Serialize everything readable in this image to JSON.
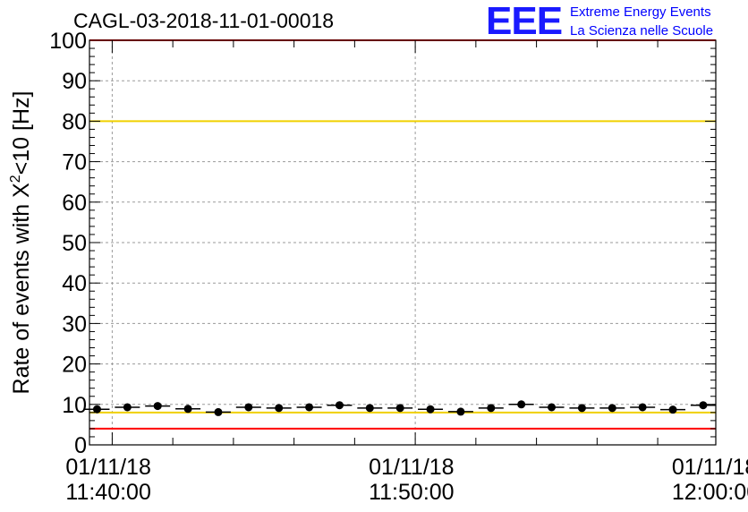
{
  "header": {
    "title": "CAGL-03-2018-11-01-00018",
    "logo_mark": "EEE",
    "logo_line1": "Extreme Energy Events",
    "logo_line2": "La Scienza nelle Scuole"
  },
  "colors": {
    "data": "#000000",
    "red_threshold": "#ff0000",
    "yellow_threshold": "#f0d000",
    "grid": "#9a9a9a",
    "logo": "#0000ff"
  },
  "chart_data": {
    "type": "scatter",
    "title": "CAGL-03-2018-11-01-00018",
    "ylabel_prefix": "Rate of events with X",
    "ylabel_sup": "2",
    "ylabel_suffix": "<10 [Hz]",
    "xlabel": "",
    "ylim": [
      0,
      100
    ],
    "yticks": [
      0,
      10,
      20,
      30,
      40,
      50,
      60,
      70,
      80,
      90,
      100
    ],
    "xlim": [
      "11:39:15",
      "11:59:55"
    ],
    "xticks": [
      {
        "time": "11:40:00",
        "date_label": "01/11/18",
        "time_label": "11:40:00"
      },
      {
        "time": "11:50:00",
        "date_label": "01/11/18",
        "time_label": "11:50:00"
      },
      {
        "time": "12:00:00",
        "date_label": "01/11/18",
        "time_label": "12:00:00"
      }
    ],
    "grid": true,
    "series": [
      {
        "x": [
          "11:39:30",
          "11:40:30",
          "11:41:30",
          "11:42:30",
          "11:43:30",
          "11:44:30",
          "11:45:30",
          "11:46:30",
          "11:47:30",
          "11:48:30",
          "11:49:30",
          "11:50:30",
          "11:51:30",
          "11:52:30",
          "11:53:30",
          "11:54:30",
          "11:55:30",
          "11:56:30",
          "11:57:30",
          "11:58:30",
          "11:59:30"
        ],
        "y": [
          8.8,
          9.3,
          9.6,
          8.9,
          8.1,
          9.3,
          9.1,
          9.3,
          9.8,
          9.1,
          9.1,
          8.8,
          8.2,
          9.1,
          10.0,
          9.3,
          9.1,
          9.1,
          9.3,
          8.7,
          9.8
        ]
      }
    ],
    "hlines": [
      {
        "y": 100,
        "color": "#ff0000"
      },
      {
        "y": 4,
        "color": "#ff0000"
      },
      {
        "y": 80,
        "color": "#f0d000"
      },
      {
        "y": 8,
        "color": "#f0d000"
      }
    ]
  }
}
